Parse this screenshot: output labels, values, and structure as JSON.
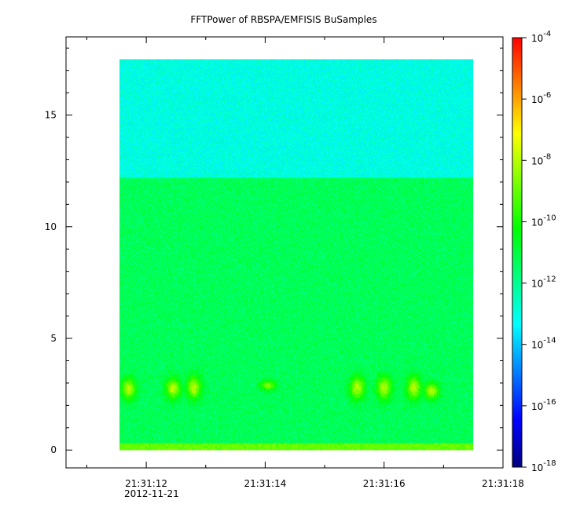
{
  "chart_data": {
    "type": "heatmap",
    "title": "FFTPower of RBSPA/EMFISIS  BuSamples",
    "xlabel": "",
    "ylabel": "",
    "x_start": "21:31:11.55",
    "x_end": "21:31:17.50",
    "xlim": [
      "21:31:10.65",
      "21:31:18.00"
    ],
    "x_ticks": [
      {
        "time": "21:31:12",
        "label": "21:31:12"
      },
      {
        "time": "21:31:14",
        "label": "21:31:14"
      },
      {
        "time": "21:31:16",
        "label": "21:31:16"
      },
      {
        "time": "21:31:18",
        "label": "21:31:18"
      }
    ],
    "x_minor_ticks": [
      "21:31:11",
      "21:31:13",
      "21:31:15",
      "21:31:17"
    ],
    "x_date_label": "2012-11-21",
    "ylim": [
      -0.8,
      18.5
    ],
    "y_ticks": [
      0,
      5,
      10,
      15
    ],
    "y_range": [
      0,
      17.5
    ],
    "grid": false,
    "colorbar": {
      "scale": "log",
      "min": 1e-18,
      "max": 0.0001,
      "ticks": [
        {
          "base": "10",
          "exp": "-4",
          "value": 0.0001
        },
        {
          "base": "10",
          "exp": "-6",
          "value": 1e-06
        },
        {
          "base": "10",
          "exp": "-8",
          "value": 1e-08
        },
        {
          "base": "10",
          "exp": "-10",
          "value": 1e-10
        },
        {
          "base": "10",
          "exp": "-12",
          "value": 1e-12
        },
        {
          "base": "10",
          "exp": "-14",
          "value": 1e-14
        },
        {
          "base": "10",
          "exp": "-16",
          "value": 1e-16
        },
        {
          "base": "10",
          "exp": "-18",
          "value": 1e-18
        }
      ],
      "colormap": [
        "#00007f",
        "#0000ff",
        "#007fff",
        "#00ffff",
        "#00ff7f",
        "#00ff00",
        "#7fff00",
        "#ffff00",
        "#ff7f00",
        "#ff0000"
      ]
    },
    "bands": [
      {
        "y_range": [
          12.2,
          17.5
        ],
        "log_power": -13
      },
      {
        "y_range": [
          0.3,
          12.2
        ],
        "log_power": -11.3
      },
      {
        "y_range": [
          0,
          0.3
        ],
        "log_power": -9
      }
    ],
    "enhancements": [
      {
        "time": "21:31:11.70",
        "y_range": [
          2.3,
          3.2
        ],
        "log_power": -8
      },
      {
        "time": "21:31:12.45",
        "y_range": [
          2.3,
          3.2
        ],
        "log_power": -8
      },
      {
        "time": "21:31:12.80",
        "y_range": [
          2.3,
          3.3
        ],
        "log_power": -8
      },
      {
        "time": "21:31:14.05",
        "y_range": [
          2.7,
          3.1
        ],
        "log_power": -8.5
      },
      {
        "time": "21:31:15.55",
        "y_range": [
          2.3,
          3.3
        ],
        "log_power": -8
      },
      {
        "time": "21:31:16.00",
        "y_range": [
          2.3,
          3.3
        ],
        "log_power": -8
      },
      {
        "time": "21:31:16.50",
        "y_range": [
          2.3,
          3.3
        ],
        "log_power": -8
      },
      {
        "time": "21:31:16.80",
        "y_range": [
          2.3,
          3.0
        ],
        "log_power": -8
      }
    ]
  }
}
